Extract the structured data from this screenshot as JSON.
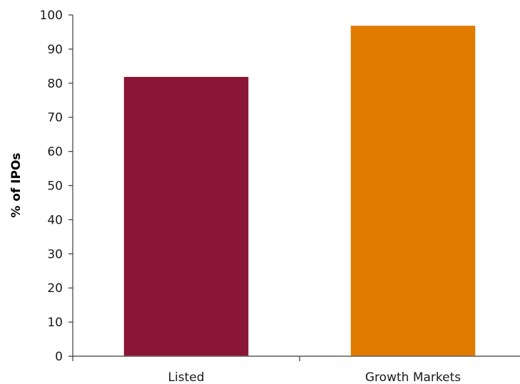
{
  "chart_data": {
    "type": "bar",
    "title": "",
    "xlabel": "",
    "ylabel": "% of IPOs",
    "ylim": [
      0,
      100
    ],
    "yticks": [
      0,
      10,
      20,
      30,
      40,
      50,
      60,
      70,
      80,
      90,
      100
    ],
    "grid": false,
    "categories": [
      "Listed",
      "Growth Markets"
    ],
    "values": [
      82,
      97
    ],
    "colors": [
      "#8b1535",
      "#e07b00"
    ]
  }
}
